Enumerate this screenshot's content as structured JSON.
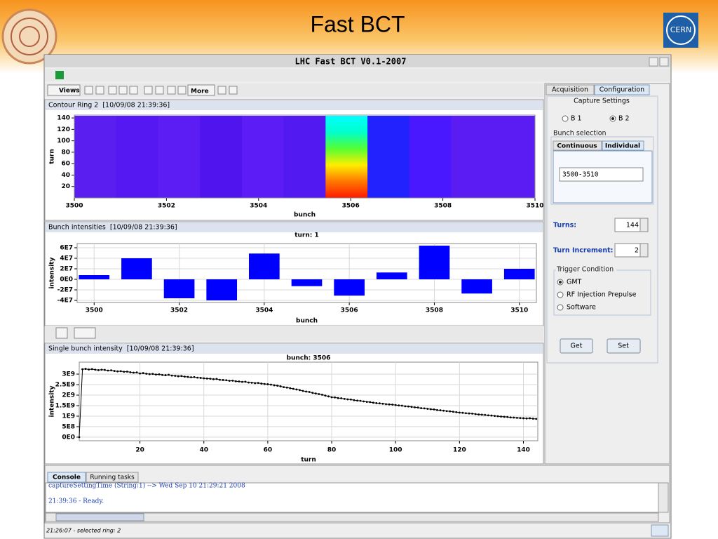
{
  "slide": {
    "title": "Fast BCT",
    "logo_text": "CERN"
  },
  "window": {
    "title": "LHC Fast BCT V0.1-2007"
  },
  "toolbar": {
    "views": "Views",
    "more": "More"
  },
  "panels": [
    {
      "title": "Contour Ring 2  [10/09/08 21:39:36]"
    },
    {
      "title": "Bunch intensities  [10/09/08 21:39:36]"
    },
    {
      "title": "Single bunch intensity  [10/09/08 21:39:36]"
    }
  ],
  "settings": {
    "tabs": [
      "Acquisition",
      "Configuration"
    ],
    "capture_title": "Capture Settings",
    "beams": [
      "B 1",
      "B 2"
    ],
    "bunch_title": "Bunch selection",
    "bunch_tabs": [
      "Continuous",
      "Individual"
    ],
    "bunch_range": "3500-3510",
    "turns_label": "Turns:",
    "turns": 144,
    "increment_label": "Turn Increment:",
    "increment": 2,
    "trigger_title": "Trigger Condition",
    "triggers": [
      "GMT",
      "RF Injection Prepulse",
      "Software"
    ],
    "buttons": [
      "Get",
      "Set"
    ]
  },
  "console": {
    "tabs": [
      "Console",
      "Running tasks"
    ],
    "lines": [
      "captureSettingTime (String:1) --> Wed Sep 10 21:29:21 2008",
      "21:39:36 - Ready."
    ]
  },
  "status": "21:26:07 - selected ring: 2",
  "chart_data": [
    {
      "type": "heatmap",
      "x_label": "bunch",
      "y_label": "turn",
      "x": [
        3500,
        3501,
        3502,
        3503,
        3504,
        3505,
        3506,
        3507,
        3508,
        3509,
        3510
      ],
      "colors": [
        [
          "#5a1ef0"
        ],
        [
          "#5518f2"
        ],
        [
          "#5c1cf4"
        ],
        [
          "#5014ee"
        ],
        [
          "#5b1cf6"
        ],
        [
          "#5219f0"
        ],
        [
          "#ff1a00",
          "#ff7700",
          "#ffee00",
          "#55ff33",
          "#00ffcc",
          "#00ffff"
        ],
        [
          "#2222ff"
        ],
        [
          "#4a18ff"
        ],
        [
          "#5a1cf2"
        ],
        [
          "#5a1cf2"
        ]
      ],
      "xlim": [
        3500,
        3510
      ],
      "xticks": [
        3500,
        3502,
        3504,
        3506,
        3508,
        3510
      ],
      "ylim": [
        0,
        145
      ],
      "yticks": [
        20,
        40,
        60,
        80,
        100,
        120,
        140
      ]
    },
    {
      "type": "bar",
      "subtitle": "turn: 1",
      "x_label": "bunch",
      "y_label": "intensity",
      "x": [
        3500,
        3501,
        3502,
        3503,
        3504,
        3505,
        3506,
        3507,
        3508,
        3509,
        3510
      ],
      "values": [
        8000000.0,
        40000000.0,
        -36000000.0,
        -40000000.0,
        49000000.0,
        -13000000.0,
        -31000000.0,
        13000000.0,
        64000000.0,
        -27000000.0,
        20000000.0
      ],
      "color": "#0000ff",
      "xlim": [
        3499.6,
        3510.4
      ],
      "xticks": [
        3500,
        3502,
        3504,
        3506,
        3508,
        3510
      ],
      "ylim": [
        -44000000.0,
        68000000.0
      ],
      "yticks": [
        {
          "value": 60000000.0,
          "label": "6E7"
        },
        {
          "value": 40000000.0,
          "label": "4E7"
        },
        {
          "value": 20000000.0,
          "label": "2E7"
        },
        {
          "value": 0,
          "label": "0E0"
        },
        {
          "value": -20000000.0,
          "label": "-2E7"
        },
        {
          "value": -40000000.0,
          "label": "-4E7"
        }
      ],
      "grid": true
    },
    {
      "type": "line",
      "subtitle": "bunch: 3506",
      "x_label": "turn",
      "y_label": "intensity",
      "x": [
        1,
        2,
        3,
        4,
        5,
        6,
        7,
        8,
        9,
        10,
        11,
        12,
        13,
        14,
        15,
        16,
        17,
        18,
        19,
        20,
        21,
        22,
        23,
        24,
        25,
        26,
        27,
        28,
        29,
        30,
        31,
        32,
        33,
        34,
        35,
        36,
        37,
        38,
        39,
        40,
        41,
        42,
        43,
        44,
        45,
        46,
        47,
        48,
        49,
        50,
        51,
        52,
        53,
        54,
        55,
        56,
        57,
        58,
        59,
        60,
        61,
        62,
        63,
        64,
        65,
        66,
        67,
        68,
        69,
        70,
        71,
        72,
        73,
        74,
        75,
        76,
        77,
        78,
        79,
        80,
        81,
        82,
        83,
        84,
        85,
        86,
        87,
        88,
        89,
        90,
        91,
        92,
        93,
        94,
        95,
        96,
        97,
        98,
        99,
        100,
        101,
        102,
        103,
        104,
        105,
        106,
        107,
        108,
        109,
        110,
        111,
        112,
        113,
        114,
        115,
        116,
        117,
        118,
        119,
        120,
        121,
        122,
        123,
        124,
        125,
        126,
        127,
        128,
        129,
        130,
        131,
        132,
        133,
        134,
        135,
        136,
        137,
        138,
        139,
        140,
        141,
        142,
        143,
        144
      ],
      "values": [
        0,
        3230000000.0,
        3250000000.0,
        3220000000.0,
        3240000000.0,
        3210000000.0,
        3190000000.0,
        3210000000.0,
        3200000000.0,
        3170000000.0,
        3180000000.0,
        3150000000.0,
        3130000000.0,
        3140000000.0,
        3110000000.0,
        3120000000.0,
        3090000000.0,
        3070000000.0,
        3080000000.0,
        3030000000.0,
        3050000000.0,
        3020000000.0,
        3000000000.0,
        3010000000.0,
        2980000000.0,
        2990000000.0,
        2960000000.0,
        2950000000.0,
        2970000000.0,
        2930000000.0,
        2920000000.0,
        2900000000.0,
        2910000000.0,
        2880000000.0,
        2870000000.0,
        2850000000.0,
        2860000000.0,
        2830000000.0,
        2820000000.0,
        2800000000.0,
        2790000000.0,
        2780000000.0,
        2760000000.0,
        2770000000.0,
        2730000000.0,
        2720000000.0,
        2710000000.0,
        2680000000.0,
        2690000000.0,
        2660000000.0,
        2650000000.0,
        2630000000.0,
        2640000000.0,
        2600000000.0,
        2590000000.0,
        2570000000.0,
        2580000000.0,
        2550000000.0,
        2530000000.0,
        2520000000.0,
        2500000000.0,
        2470000000.0,
        2450000000.0,
        2420000000.0,
        2380000000.0,
        2360000000.0,
        2330000000.0,
        2300000000.0,
        2270000000.0,
        2240000000.0,
        2200000000.0,
        2170000000.0,
        2150000000.0,
        2110000000.0,
        2080000000.0,
        2050000000.0,
        2020000000.0,
        1980000000.0,
        1940000000.0,
        1900000000.0,
        1890000000.0,
        1860000000.0,
        1850000000.0,
        1820000000.0,
        1800000000.0,
        1790000000.0,
        1760000000.0,
        1740000000.0,
        1730000000.0,
        1700000000.0,
        1680000000.0,
        1670000000.0,
        1640000000.0,
        1620000000.0,
        1610000000.0,
        1590000000.0,
        1570000000.0,
        1560000000.0,
        1550000000.0,
        1530000000.0,
        1510000000.0,
        1500000000.0,
        1470000000.0,
        1460000000.0,
        1440000000.0,
        1420000000.0,
        1410000000.0,
        1380000000.0,
        1370000000.0,
        1350000000.0,
        1330000000.0,
        1320000000.0,
        1290000000.0,
        1280000000.0,
        1260000000.0,
        1240000000.0,
        1230000000.0,
        1210000000.0,
        1190000000.0,
        1170000000.0,
        1160000000.0,
        1140000000.0,
        1130000000.0,
        1120000000.0,
        1100000000.0,
        1080000000.0,
        1070000000.0,
        1060000000.0,
        1040000000.0,
        1030000000.0,
        1010000000.0,
        1000000000.0,
        980000000.0,
        970000000.0,
        960000000.0,
        940000000.0,
        930000000.0,
        920000000.0,
        910000000.0,
        900000000.0,
        890000000.0,
        900000000.0,
        880000000.0,
        870000000.0
      ],
      "color": "#000000",
      "xlim": [
        1,
        144.5
      ],
      "xticks": [
        20,
        40,
        60,
        80,
        100,
        120,
        140
      ],
      "ylim": [
        -170000000.0,
        3570000000.0
      ],
      "yticks": [
        {
          "value": 3000000000.0,
          "label": "3E9"
        },
        {
          "value": 2500000000.0,
          "label": "2.5E9"
        },
        {
          "value": 2000000000.0,
          "label": "2E9"
        },
        {
          "value": 1500000000.0,
          "label": "1.5E9"
        },
        {
          "value": 1000000000.0,
          "label": "1E9"
        },
        {
          "value": 500000000.0,
          "label": "5E8"
        },
        {
          "value": 0,
          "label": "0E0"
        }
      ],
      "grid": true
    }
  ]
}
